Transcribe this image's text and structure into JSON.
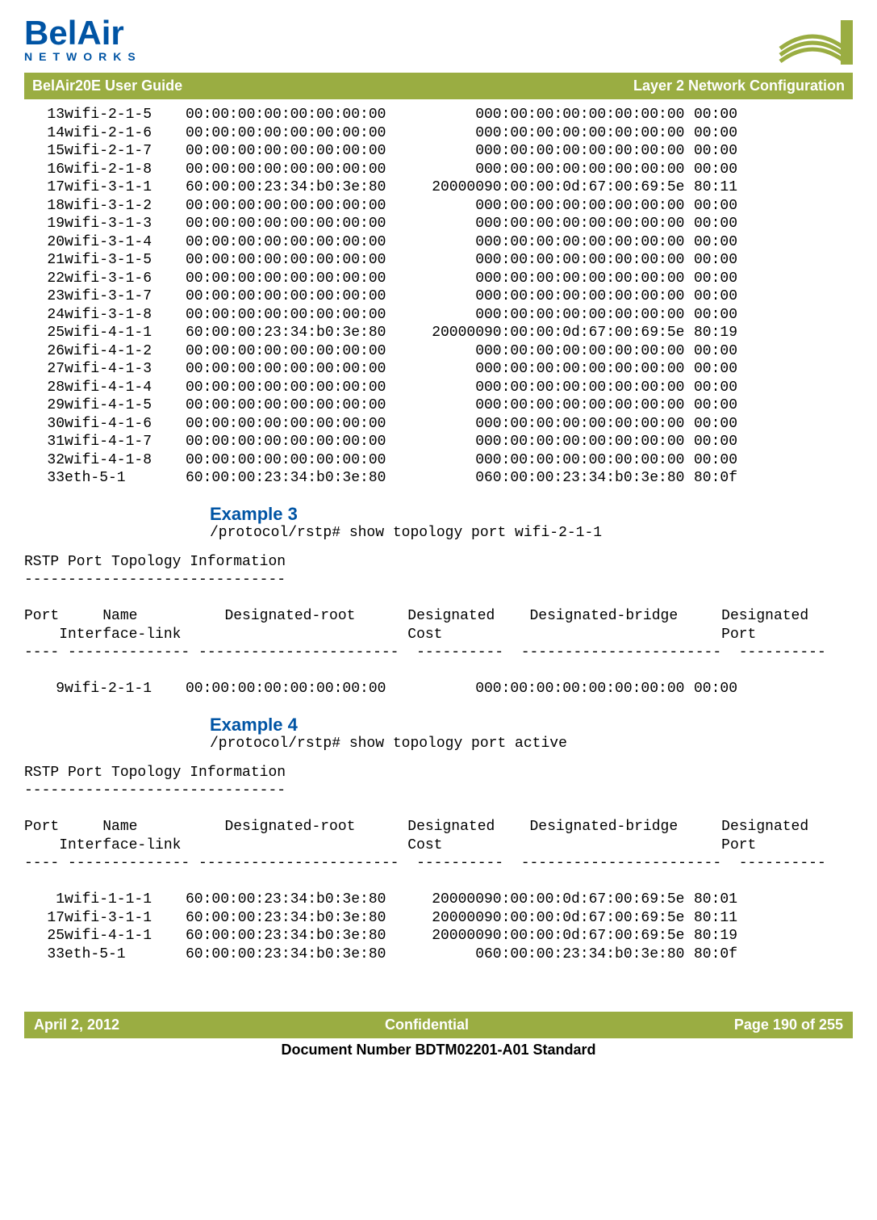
{
  "header": {
    "logo_top": "BelAir",
    "logo_bottom": "NETWORKS",
    "bar_left": "BelAir20E User Guide",
    "bar_right": "Layer 2 Network Configuration"
  },
  "table1_rows": [
    [
      "13",
      "wifi-2-1-5",
      "00:00:00:00:00:00:00:00",
      "0",
      "00:00:00:00:00:00:00:00",
      "00:00"
    ],
    [
      "14",
      "wifi-2-1-6",
      "00:00:00:00:00:00:00:00",
      "0",
      "00:00:00:00:00:00:00:00",
      "00:00"
    ],
    [
      "15",
      "wifi-2-1-7",
      "00:00:00:00:00:00:00:00",
      "0",
      "00:00:00:00:00:00:00:00",
      "00:00"
    ],
    [
      "16",
      "wifi-2-1-8",
      "00:00:00:00:00:00:00:00",
      "0",
      "00:00:00:00:00:00:00:00",
      "00:00"
    ],
    [
      "17",
      "wifi-3-1-1",
      "60:00:00:23:34:b0:3e:80",
      "200000",
      "90:00:00:0d:67:00:69:5e",
      "80:11"
    ],
    [
      "18",
      "wifi-3-1-2",
      "00:00:00:00:00:00:00:00",
      "0",
      "00:00:00:00:00:00:00:00",
      "00:00"
    ],
    [
      "19",
      "wifi-3-1-3",
      "00:00:00:00:00:00:00:00",
      "0",
      "00:00:00:00:00:00:00:00",
      "00:00"
    ],
    [
      "20",
      "wifi-3-1-4",
      "00:00:00:00:00:00:00:00",
      "0",
      "00:00:00:00:00:00:00:00",
      "00:00"
    ],
    [
      "21",
      "wifi-3-1-5",
      "00:00:00:00:00:00:00:00",
      "0",
      "00:00:00:00:00:00:00:00",
      "00:00"
    ],
    [
      "22",
      "wifi-3-1-6",
      "00:00:00:00:00:00:00:00",
      "0",
      "00:00:00:00:00:00:00:00",
      "00:00"
    ],
    [
      "23",
      "wifi-3-1-7",
      "00:00:00:00:00:00:00:00",
      "0",
      "00:00:00:00:00:00:00:00",
      "00:00"
    ],
    [
      "24",
      "wifi-3-1-8",
      "00:00:00:00:00:00:00:00",
      "0",
      "00:00:00:00:00:00:00:00",
      "00:00"
    ],
    [
      "25",
      "wifi-4-1-1",
      "60:00:00:23:34:b0:3e:80",
      "200000",
      "90:00:00:0d:67:00:69:5e",
      "80:19"
    ],
    [
      "26",
      "wifi-4-1-2",
      "00:00:00:00:00:00:00:00",
      "0",
      "00:00:00:00:00:00:00:00",
      "00:00"
    ],
    [
      "27",
      "wifi-4-1-3",
      "00:00:00:00:00:00:00:00",
      "0",
      "00:00:00:00:00:00:00:00",
      "00:00"
    ],
    [
      "28",
      "wifi-4-1-4",
      "00:00:00:00:00:00:00:00",
      "0",
      "00:00:00:00:00:00:00:00",
      "00:00"
    ],
    [
      "29",
      "wifi-4-1-5",
      "00:00:00:00:00:00:00:00",
      "0",
      "00:00:00:00:00:00:00:00",
      "00:00"
    ],
    [
      "30",
      "wifi-4-1-6",
      "00:00:00:00:00:00:00:00",
      "0",
      "00:00:00:00:00:00:00:00",
      "00:00"
    ],
    [
      "31",
      "wifi-4-1-7",
      "00:00:00:00:00:00:00:00",
      "0",
      "00:00:00:00:00:00:00:00",
      "00:00"
    ],
    [
      "32",
      "wifi-4-1-8",
      "00:00:00:00:00:00:00:00",
      "0",
      "00:00:00:00:00:00:00:00",
      "00:00"
    ],
    [
      "33",
      "eth-5-1",
      "60:00:00:23:34:b0:3e:80",
      "0",
      "60:00:00:23:34:b0:3e:80",
      "80:0f"
    ]
  ],
  "example3": {
    "heading": "Example 3",
    "cmd": "/protocol/rstp# show topology port wifi-2-1-1",
    "info_title": "RSTP Port Topology Information",
    "info_dash": "------------------------------",
    "hdr1": "Port     Name          Designated-root      Designated    Designated-bridge     Designated",
    "hdr2": "    Interface-link                          Cost                                Port",
    "hdr3": "---- -------------- -----------------------  ----------  -----------------------  ----------",
    "rows": [
      [
        "9",
        "wifi-2-1-1",
        "00:00:00:00:00:00:00:00",
        "0",
        "00:00:00:00:00:00:00:00",
        "00:00"
      ]
    ]
  },
  "example4": {
    "heading": "Example 4",
    "cmd": "/protocol/rstp# show topology port active",
    "info_title": "RSTP Port Topology Information",
    "info_dash": "------------------------------",
    "hdr1": "Port     Name          Designated-root      Designated    Designated-bridge     Designated",
    "hdr2": "    Interface-link                          Cost                                Port",
    "hdr3": "---- -------------- -----------------------  ----------  -----------------------  ----------",
    "rows": [
      [
        "1",
        "wifi-1-1-1",
        "60:00:00:23:34:b0:3e:80",
        "200000",
        "90:00:00:0d:67:00:69:5e",
        "80:01"
      ],
      [
        "17",
        "wifi-3-1-1",
        "60:00:00:23:34:b0:3e:80",
        "200000",
        "90:00:00:0d:67:00:69:5e",
        "80:11"
      ],
      [
        "25",
        "wifi-4-1-1",
        "60:00:00:23:34:b0:3e:80",
        "200000",
        "90:00:00:0d:67:00:69:5e",
        "80:19"
      ],
      [
        "33",
        "eth-5-1",
        "60:00:00:23:34:b0:3e:80",
        "0",
        "60:00:00:23:34:b0:3e:80",
        "80:0f"
      ]
    ]
  },
  "footer": {
    "left": "April 2, 2012",
    "center": "Confidential",
    "right": "Page 190 of 255",
    "docnum": "Document Number BDTM02201-A01 Standard"
  },
  "colors": {
    "brand_blue": "#0054a4",
    "bar_green": "#9aad42",
    "wave_green": "#9aad42"
  }
}
